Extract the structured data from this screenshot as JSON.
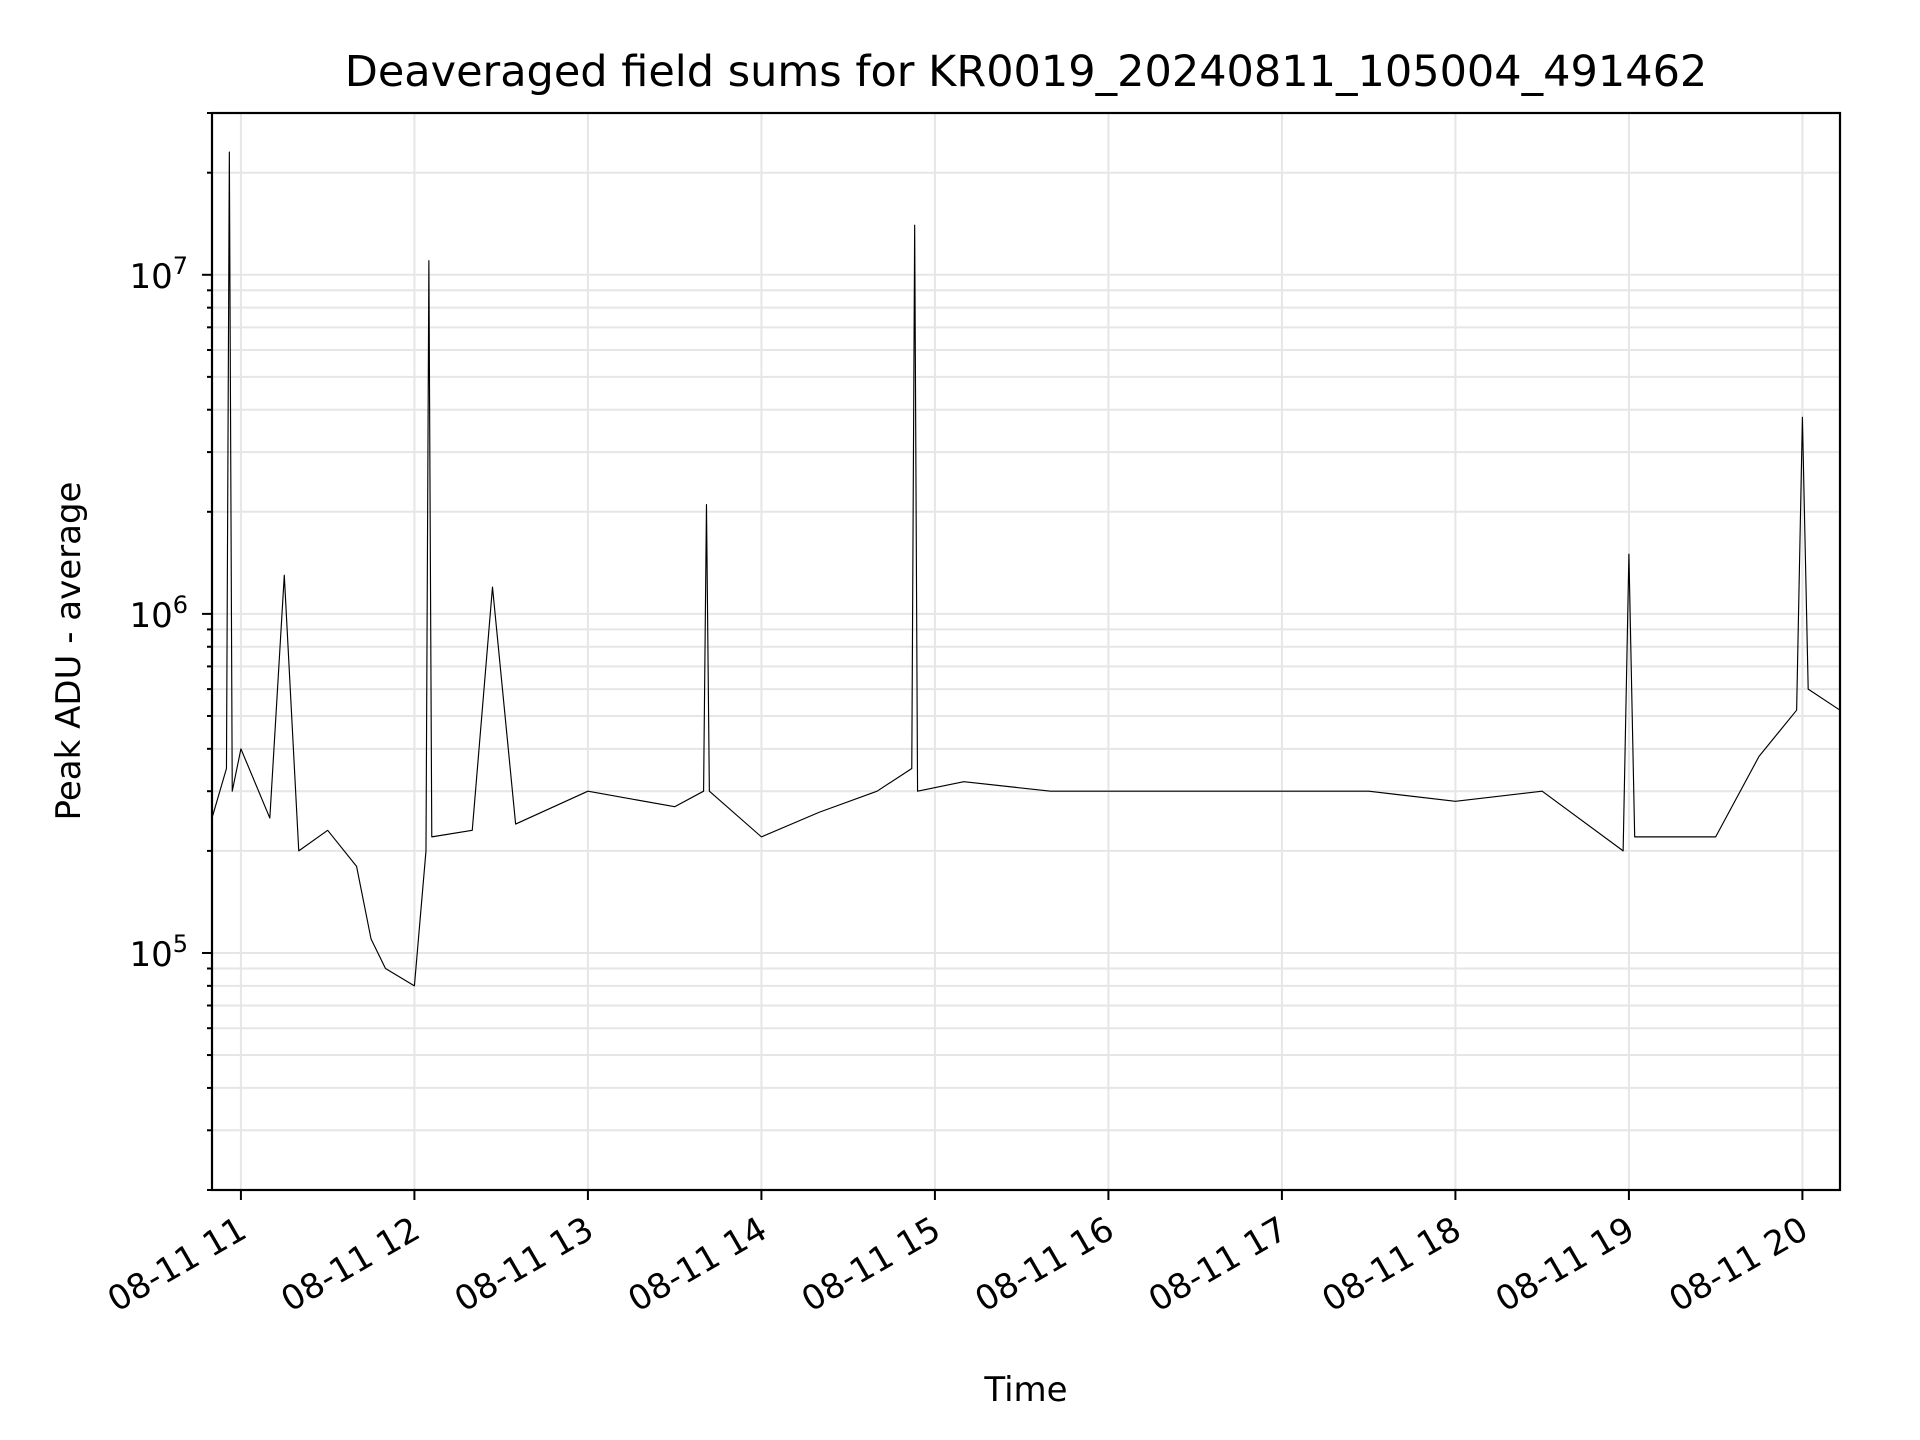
{
  "chart_data": {
    "type": "line",
    "title": "Deaveraged field sums for KR0019_20240811_105004_491462",
    "xlabel": "Time",
    "ylabel": "Peak ADU - average",
    "x_scale": "date",
    "y_scale": "log",
    "xlim": [
      "2024-08-11T10:50:00",
      "2024-08-11T20:13:00"
    ],
    "ylim": [
      20000,
      30000000
    ],
    "grid": true,
    "x_ticks": [
      {
        "value": "2024-08-11T11:00:00",
        "label": "08-11 11"
      },
      {
        "value": "2024-08-11T12:00:00",
        "label": "08-11 12"
      },
      {
        "value": "2024-08-11T13:00:00",
        "label": "08-11 13"
      },
      {
        "value": "2024-08-11T14:00:00",
        "label": "08-11 14"
      },
      {
        "value": "2024-08-11T15:00:00",
        "label": "08-11 15"
      },
      {
        "value": "2024-08-11T16:00:00",
        "label": "08-11 16"
      },
      {
        "value": "2024-08-11T17:00:00",
        "label": "08-11 17"
      },
      {
        "value": "2024-08-11T18:00:00",
        "label": "08-11 18"
      },
      {
        "value": "2024-08-11T19:00:00",
        "label": "08-11 19"
      },
      {
        "value": "2024-08-11T20:00:00",
        "label": "08-11 20"
      }
    ],
    "y_ticks": [
      {
        "value": 100000,
        "base": "10",
        "exponent": "5"
      },
      {
        "value": 1000000,
        "base": "10",
        "exponent": "6"
      },
      {
        "value": 10000000,
        "base": "10",
        "exponent": "7"
      }
    ],
    "series": [
      {
        "color": "#000000",
        "x": [
          "2024-08-11T10:50:00",
          "2024-08-11T10:55:00",
          "2024-08-11T10:56:00",
          "2024-08-11T10:57:00",
          "2024-08-11T11:00:00",
          "2024-08-11T11:10:00",
          "2024-08-11T11:15:00",
          "2024-08-11T11:20:00",
          "2024-08-11T11:30:00",
          "2024-08-11T11:40:00",
          "2024-08-11T11:45:00",
          "2024-08-11T11:50:00",
          "2024-08-11T12:00:00",
          "2024-08-11T12:04:00",
          "2024-08-11T12:05:00",
          "2024-08-11T12:06:00",
          "2024-08-11T12:20:00",
          "2024-08-11T12:27:00",
          "2024-08-11T12:35:00",
          "2024-08-11T13:00:00",
          "2024-08-11T13:30:00",
          "2024-08-11T13:40:00",
          "2024-08-11T13:41:00",
          "2024-08-11T13:42:00",
          "2024-08-11T14:00:00",
          "2024-08-11T14:20:00",
          "2024-08-11T14:40:00",
          "2024-08-11T14:52:00",
          "2024-08-11T14:53:00",
          "2024-08-11T14:54:00",
          "2024-08-11T15:10:00",
          "2024-08-11T15:40:00",
          "2024-08-11T16:00:00",
          "2024-08-11T16:30:00",
          "2024-08-11T17:00:00",
          "2024-08-11T17:30:00",
          "2024-08-11T18:00:00",
          "2024-08-11T18:30:00",
          "2024-08-11T18:58:00",
          "2024-08-11T19:00:00",
          "2024-08-11T19:02:00",
          "2024-08-11T19:30:00",
          "2024-08-11T19:45:00",
          "2024-08-11T19:58:00",
          "2024-08-11T20:00:00",
          "2024-08-11T20:02:00",
          "2024-08-11T20:13:00"
        ],
        "values": [
          250000,
          350000,
          23000000,
          300000,
          400000,
          250000,
          1300000,
          200000,
          230000,
          180000,
          110000,
          90000,
          80000,
          200000,
          11000000,
          220000,
          230000,
          1200000,
          240000,
          300000,
          270000,
          300000,
          2100000,
          300000,
          220000,
          260000,
          300000,
          350000,
          14000000,
          300000,
          320000,
          300000,
          300000,
          300000,
          300000,
          300000,
          280000,
          300000,
          200000,
          1500000,
          220000,
          220000,
          380000,
          520000,
          3800000,
          600000,
          520000
        ]
      }
    ]
  }
}
